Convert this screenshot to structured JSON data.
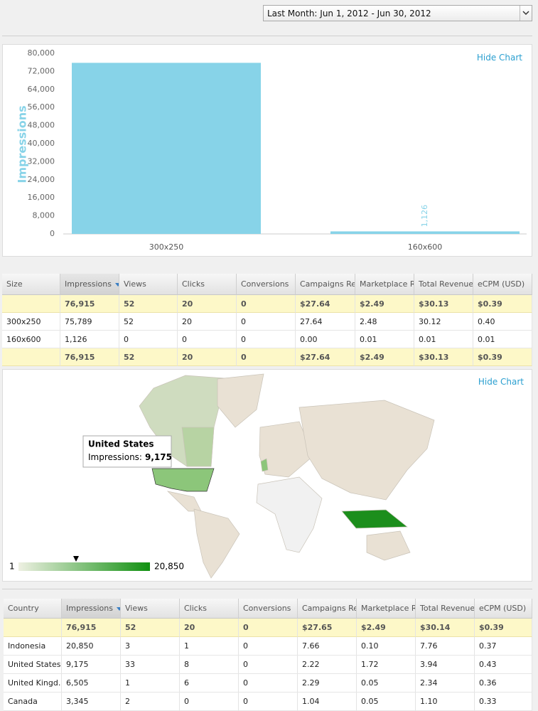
{
  "date_range": "Last Month: Jun 1, 2012 - Jun 30, 2012",
  "hide_chart_link": "Hide Chart",
  "chart_data": {
    "type": "bar",
    "y_label": "Impressions",
    "categories": [
      "300x250",
      "160x600"
    ],
    "values": [
      75789,
      1126
    ],
    "value_labels": [
      null,
      "1,126"
    ],
    "color": "#87d3e8",
    "ylim": [
      0,
      80000
    ],
    "yticks": [
      {
        "value": 0,
        "label": "0"
      },
      {
        "value": 8000,
        "label": "8,000"
      },
      {
        "value": 16000,
        "label": "16,000"
      },
      {
        "value": 24000,
        "label": "24,000"
      },
      {
        "value": 32000,
        "label": "32,000"
      },
      {
        "value": 40000,
        "label": "40,000"
      },
      {
        "value": 48000,
        "label": "48,000"
      },
      {
        "value": 56000,
        "label": "56,000"
      },
      {
        "value": 64000,
        "label": "64,000"
      },
      {
        "value": 72000,
        "label": "72,000"
      },
      {
        "value": 80000,
        "label": "80,000"
      }
    ],
    "grid": false
  },
  "size_table": {
    "headers": [
      "Size",
      "Impressions",
      "Views",
      "Clicks",
      "Conversions",
      "Campaigns Reve",
      "Marketplace Rev",
      "Total Revenue (",
      "eCPM (USD)"
    ],
    "summary": [
      "76,915",
      "52",
      "20",
      "0",
      "$27.64",
      "$2.49",
      "$30.13",
      "$0.39"
    ],
    "rows": [
      [
        "300x250",
        "75,789",
        "52",
        "20",
        "0",
        "27.64",
        "2.48",
        "30.12",
        "0.40"
      ],
      [
        "160x600",
        "1,126",
        "0",
        "0",
        "0",
        "0.00",
        "0.01",
        "0.01",
        "0.01"
      ]
    ]
  },
  "map": {
    "tooltip": {
      "title": "United States",
      "label": "Impressions:",
      "value": "9,175"
    },
    "legend": {
      "min": "1",
      "max": "20,850"
    }
  },
  "country_table": {
    "headers": [
      "Country",
      "Impressions",
      "Views",
      "Clicks",
      "Conversions",
      "Campaigns Reve",
      "Marketplace Rev",
      "Total Revenue (",
      "eCPM (USD)"
    ],
    "summary": [
      "76,915",
      "52",
      "20",
      "0",
      "$27.65",
      "$2.49",
      "$30.14",
      "$0.39"
    ],
    "rows": [
      [
        "Indonesia",
        "20,850",
        "3",
        "1",
        "0",
        "7.66",
        "0.10",
        "7.76",
        "0.37"
      ],
      [
        "United States",
        "9,175",
        "33",
        "8",
        "0",
        "2.22",
        "1.72",
        "3.94",
        "0.43"
      ],
      [
        "United Kingd...",
        "6,505",
        "1",
        "6",
        "0",
        "2.29",
        "0.05",
        "2.34",
        "0.36"
      ],
      [
        "Canada",
        "3,345",
        "2",
        "0",
        "0",
        "1.04",
        "0.05",
        "1.10",
        "0.33"
      ]
    ]
  }
}
